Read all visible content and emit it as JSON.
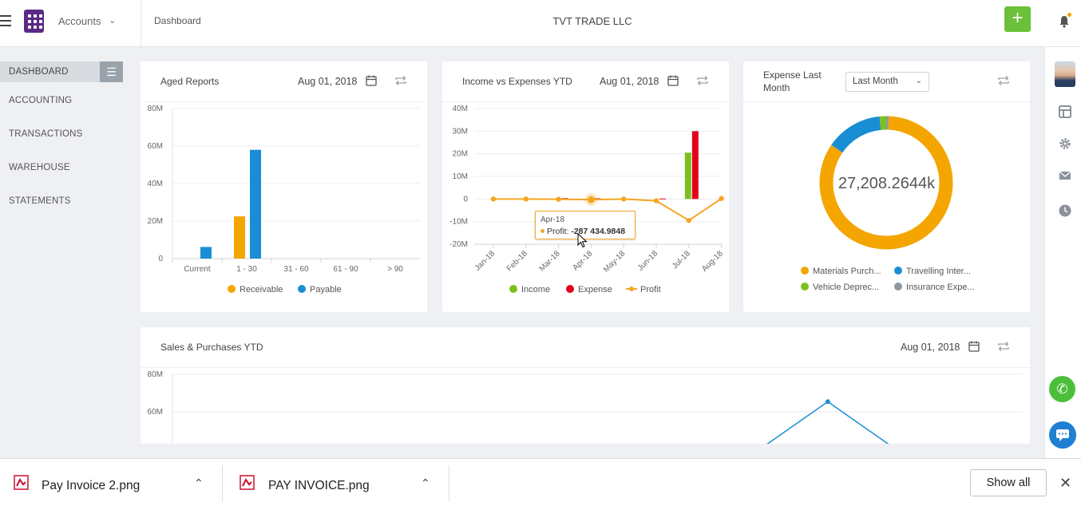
{
  "app": {
    "module": "Accounts",
    "breadcrumb": "Dashboard",
    "company": "TVT TRADE LLC",
    "add_label": "+"
  },
  "nav": {
    "items": [
      "DASHBOARD",
      "ACCOUNTING",
      "TRANSACTIONS",
      "WAREHOUSE",
      "STATEMENTS"
    ],
    "active": "DASHBOARD"
  },
  "aged_reports": {
    "title": "Aged Reports",
    "date": "Aug 01, 2018",
    "chart_data": {
      "type": "bar",
      "categories": [
        "Current",
        "1 - 30",
        "31 - 60",
        "61 - 90",
        "> 90"
      ],
      "series": [
        {
          "name": "Receivable",
          "color": "#f5a500",
          "values": [
            0,
            22.5,
            0,
            0,
            0
          ]
        },
        {
          "name": "Payable",
          "color": "#1a8ed4",
          "values": [
            6.2,
            58,
            0,
            0,
            0
          ]
        }
      ],
      "yticks": [
        "0",
        "20M",
        "40M",
        "60M",
        "80M"
      ],
      "ylim": [
        0,
        80
      ],
      "legend": "bottom"
    }
  },
  "income_expenses": {
    "title": "Income vs Expenses YTD",
    "date": "Aug 01, 2018",
    "chart_data": {
      "type": "bar",
      "categories": [
        "Jan-18",
        "Feb-18",
        "Mar-18",
        "Apr-18",
        "May-18",
        "Jun-18",
        "Jul-18",
        "Aug-18"
      ],
      "series": [
        {
          "name": "Income",
          "color": "#7cc01f",
          "values": [
            0,
            0,
            0.2,
            0.1,
            0,
            0,
            20.5,
            0
          ]
        },
        {
          "name": "Expense",
          "color": "#e3001b",
          "values": [
            0,
            0,
            0.4,
            0.3,
            0,
            0.2,
            30,
            0
          ]
        },
        {
          "name": "Profit",
          "color": "#f5a623",
          "values": [
            0,
            0,
            -0.1,
            -0.287,
            0,
            -0.8,
            -9.5,
            0.2
          ],
          "line": true
        }
      ],
      "yticks": [
        "-20M",
        "-10M",
        "0",
        "10M",
        "20M",
        "30M",
        "40M"
      ],
      "ylim": [
        -20,
        40
      ],
      "legend": "bottom"
    },
    "tooltip": {
      "label": "Apr-18",
      "series": "Profit: ",
      "value": "-287 434.9848"
    }
  },
  "expense_last_month": {
    "title_line1": "Expense Last",
    "title_line2": "Month",
    "filter": "Last Month",
    "center_value": "27,208.2644k",
    "chart_data": {
      "type": "pie",
      "labels": [
        "Materials Purch...",
        "Travelling Inter...",
        "Vehicle Deprec...",
        "Insurance Expe..."
      ],
      "values": [
        84,
        13.8,
        1.6,
        0.6
      ],
      "colors": [
        "#f5a500",
        "#1a8ed4",
        "#7cc01f",
        "#8e969e"
      ],
      "legend": "bottom"
    }
  },
  "sales_purchases": {
    "title": "Sales & Purchases YTD",
    "date": "Aug 01, 2018",
    "chart_data": {
      "type": "line",
      "yticks": [
        "60M",
        "80M"
      ],
      "ylim": [
        40,
        80
      ],
      "series": [
        {
          "name": "",
          "color": "#1a8ed4",
          "points": [
            [
              0.69,
              40
            ],
            [
              0.77,
              65.4
            ],
            [
              0.85,
              40
            ]
          ]
        }
      ]
    }
  },
  "downloads": {
    "items": [
      {
        "name": "Pay Invoice 2.png"
      },
      {
        "name": "PAY INVOICE.png"
      }
    ],
    "show_all": "Show all"
  }
}
